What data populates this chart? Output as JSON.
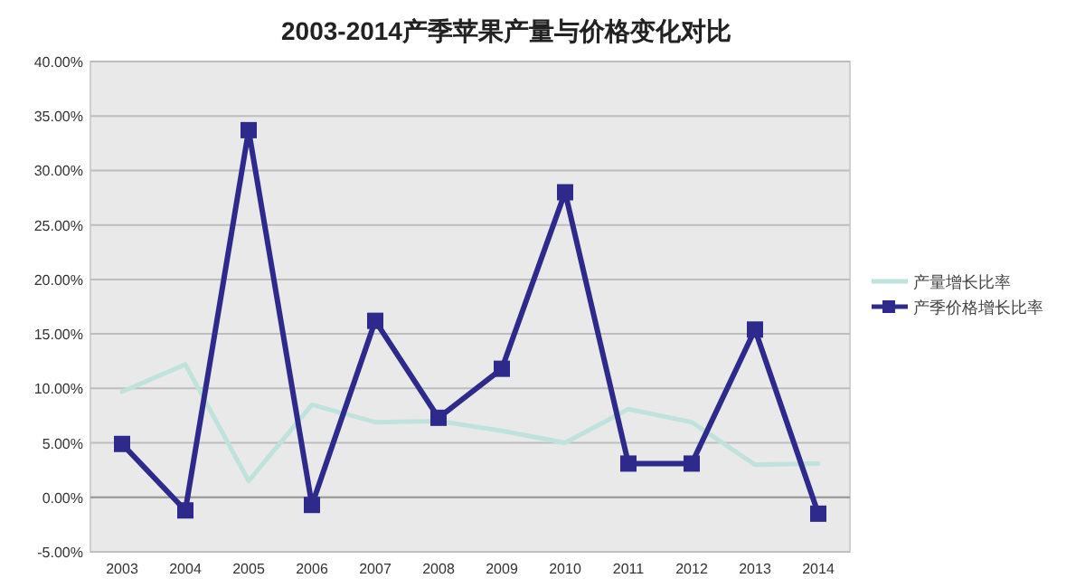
{
  "chart_data": {
    "type": "line",
    "title": "2003-2014产季苹果产量与价格变化对比",
    "categories": [
      "2003",
      "2004",
      "2005",
      "2006",
      "2007",
      "2008",
      "2009",
      "2010",
      "2011",
      "2012",
      "2013",
      "2014"
    ],
    "series": [
      {
        "name": "产量增长比率",
        "color": "#bfe3dc",
        "marker": "none",
        "values": [
          9.7,
          12.2,
          1.5,
          8.5,
          6.9,
          7.0,
          6.1,
          5.0,
          8.1,
          6.9,
          3.0,
          3.1
        ]
      },
      {
        "name": "产季价格增长比率",
        "color": "#2e2a8c",
        "marker": "square",
        "values": [
          4.9,
          -1.2,
          33.7,
          -0.7,
          16.2,
          7.3,
          11.8,
          28.0,
          3.1,
          3.1,
          15.4,
          -1.5
        ]
      }
    ],
    "ylim": [
      -5,
      40
    ],
    "yticks": [
      {
        "value": -5,
        "label": "-5.00%"
      },
      {
        "value": 0,
        "label": "0.00%"
      },
      {
        "value": 5,
        "label": "5.00%"
      },
      {
        "value": 10,
        "label": "10.00%"
      },
      {
        "value": 15,
        "label": "15.00%"
      },
      {
        "value": 20,
        "label": "20.00%"
      },
      {
        "value": 25,
        "label": "25.00%"
      },
      {
        "value": 30,
        "label": "30.00%"
      },
      {
        "value": 35,
        "label": "35.00%"
      },
      {
        "value": 40,
        "label": "40.00%"
      }
    ],
    "grid": "y",
    "legend": "right",
    "line_style": "solid"
  }
}
